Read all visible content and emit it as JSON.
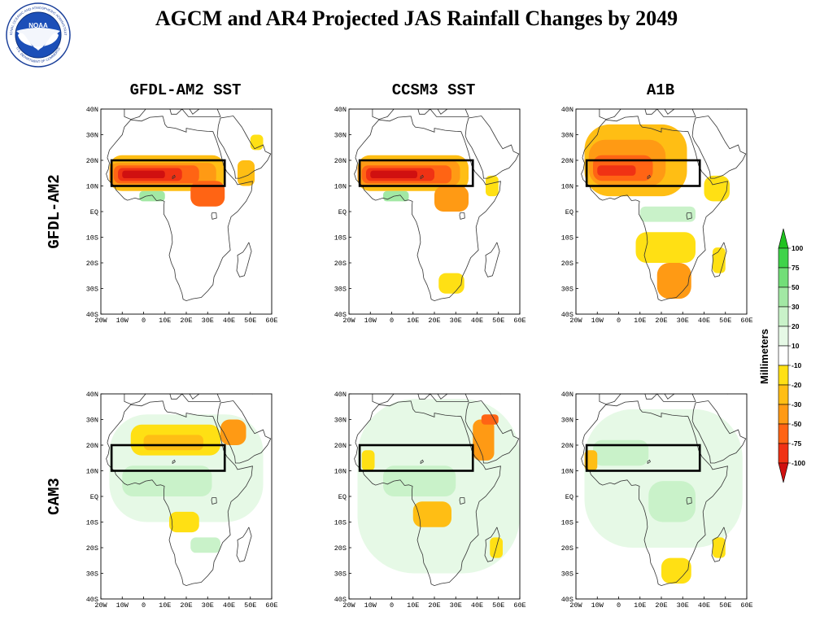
{
  "slide": {
    "title": "AGCM and AR4 Projected JAS Rainfall Changes by 2049",
    "logo": {
      "center_text": "NOAA",
      "ring_top": "NATIONAL OCEANIC AND ATMOSPHERIC ADMINISTRATION",
      "ring_bottom": "U.S. DEPARTMENT OF COMMERCE"
    }
  },
  "grid": {
    "column_titles": [
      "GFDL-AM2 SST",
      "CCSM3 SST",
      "A1B"
    ],
    "row_labels": [
      "GFDL-AM2",
      "CAM3"
    ]
  },
  "axes": {
    "x_ticks": [
      "20W",
      "10W",
      "0",
      "10E",
      "20E",
      "30E",
      "40E",
      "50E",
      "60E"
    ],
    "y_ticks": [
      "40N",
      "30N",
      "20N",
      "10N",
      "EQ",
      "10S",
      "20S",
      "30S",
      "40S"
    ],
    "lon_range": [
      -20,
      60
    ],
    "lat_range": [
      -40,
      40
    ]
  },
  "region_box": {
    "lon": [
      -15,
      38
    ],
    "lat": [
      10,
      20
    ]
  },
  "colorbar": {
    "title": "Millimeters",
    "labels": [
      "100",
      "75",
      "50",
      "30",
      "20",
      "10",
      "-10",
      "-20",
      "-30",
      "-50",
      "-75",
      "-100"
    ],
    "colors": {
      "gt100": "#1fc21f",
      "75_100": "#3fd34a",
      "50_75": "#72de78",
      "30_50": "#a2e8a4",
      "20_30": "#c9f2c9",
      "10_20": "#e6f9e6",
      "neutral": "#ffffff",
      "m10_m20": "#ffe014",
      "m20_m30": "#ffbe14",
      "m30_m50": "#ff9a14",
      "m50_m75": "#ff6414",
      "m75_m100": "#f03214",
      "lt_m100": "#d01010"
    }
  },
  "chart_data": {
    "type": "heatmap",
    "variable": "JAS rainfall change by 2049",
    "panels": [
      {
        "row": "GFDL-AM2",
        "column": "GFDL-AM2 SST",
        "anomalies": [
          {
            "lon": [
              -16,
              38
            ],
            "lat": [
              8,
              22
            ],
            "bin": "m20_m30"
          },
          {
            "lon": [
              -16,
              34
            ],
            "lat": [
              10,
              19
            ],
            "bin": "m30_m50"
          },
          {
            "lon": [
              -14,
              26
            ],
            "lat": [
              11,
              18
            ],
            "bin": "m50_m75"
          },
          {
            "lon": [
              -12,
              18
            ],
            "lat": [
              12,
              17
            ],
            "bin": "m75_m100"
          },
          {
            "lon": [
              -10,
              10
            ],
            "lat": [
              13,
              16
            ],
            "bin": "lt_m100"
          },
          {
            "lon": [
              22,
              38
            ],
            "lat": [
              2,
              12
            ],
            "bin": "m50_m75"
          },
          {
            "lon": [
              44,
              52
            ],
            "lat": [
              10,
              20
            ],
            "bin": "m20_m30"
          },
          {
            "lon": [
              50,
              56
            ],
            "lat": [
              24,
              30
            ],
            "bin": "m10_m20"
          },
          {
            "lon": [
              -2,
              10
            ],
            "lat": [
              4,
              8
            ],
            "bin": "30_50"
          }
        ]
      },
      {
        "row": "GFDL-AM2",
        "column": "CCSM3 SST",
        "anomalies": [
          {
            "lon": [
              -16,
              36
            ],
            "lat": [
              8,
              22
            ],
            "bin": "m20_m30"
          },
          {
            "lon": [
              -16,
              32
            ],
            "lat": [
              10,
              20
            ],
            "bin": "m30_m50"
          },
          {
            "lon": [
              -14,
              28
            ],
            "lat": [
              11,
              18
            ],
            "bin": "m50_m75"
          },
          {
            "lon": [
              -12,
              20
            ],
            "lat": [
              12,
              17
            ],
            "bin": "m75_m100"
          },
          {
            "lon": [
              -10,
              12
            ],
            "lat": [
              13,
              16
            ],
            "bin": "lt_m100"
          },
          {
            "lon": [
              20,
              36
            ],
            "lat": [
              0,
              10
            ],
            "bin": "m30_m50"
          },
          {
            "lon": [
              22,
              34
            ],
            "lat": [
              -32,
              -24
            ],
            "bin": "m10_m20"
          },
          {
            "lon": [
              44,
              50
            ],
            "lat": [
              6,
              14
            ],
            "bin": "m10_m20"
          },
          {
            "lon": [
              -4,
              8
            ],
            "lat": [
              4,
              8
            ],
            "bin": "30_50"
          }
        ]
      },
      {
        "row": "GFDL-AM2",
        "column": "A1B",
        "anomalies": [
          {
            "lon": [
              -16,
              32
            ],
            "lat": [
              6,
              34
            ],
            "bin": "m20_m30"
          },
          {
            "lon": [
              -14,
              22
            ],
            "lat": [
              10,
              28
            ],
            "bin": "m30_m50"
          },
          {
            "lon": [
              -12,
              16
            ],
            "lat": [
              12,
              22
            ],
            "bin": "m50_m75"
          },
          {
            "lon": [
              -10,
              8
            ],
            "lat": [
              14,
              18
            ],
            "bin": "m75_m100"
          },
          {
            "lon": [
              8,
              36
            ],
            "lat": [
              -20,
              -8
            ],
            "bin": "m10_m20"
          },
          {
            "lon": [
              18,
              34
            ],
            "lat": [
              -34,
              -20
            ],
            "bin": "m30_m50"
          },
          {
            "lon": [
              40,
              52
            ],
            "lat": [
              4,
              14
            ],
            "bin": "m10_m20"
          },
          {
            "lon": [
              44,
              50
            ],
            "lat": [
              -24,
              -14
            ],
            "bin": "m10_m20"
          },
          {
            "lon": [
              10,
              36
            ],
            "lat": [
              -4,
              2
            ],
            "bin": "20_30"
          }
        ]
      },
      {
        "row": "CAM3",
        "column": "GFDL-AM2 SST",
        "anomalies": [
          {
            "lon": [
              -16,
              56
            ],
            "lat": [
              -10,
              32
            ],
            "bin": "10_20"
          },
          {
            "lon": [
              -10,
              32
            ],
            "lat": [
              0,
              12
            ],
            "bin": "20_30"
          },
          {
            "lon": [
              -6,
              36
            ],
            "lat": [
              16,
              28
            ],
            "bin": "m10_m20"
          },
          {
            "lon": [
              0,
              28
            ],
            "lat": [
              18,
              24
            ],
            "bin": "m20_m30"
          },
          {
            "lon": [
              36,
              48
            ],
            "lat": [
              20,
              30
            ],
            "bin": "m30_m50"
          },
          {
            "lon": [
              12,
              26
            ],
            "lat": [
              -14,
              -6
            ],
            "bin": "m10_m20"
          },
          {
            "lon": [
              22,
              36
            ],
            "lat": [
              -22,
              -16
            ],
            "bin": "20_30"
          }
        ]
      },
      {
        "row": "CAM3",
        "column": "CCSM3 SST",
        "anomalies": [
          {
            "lon": [
              -16,
              60
            ],
            "lat": [
              -30,
              38
            ],
            "bin": "10_20"
          },
          {
            "lon": [
              -4,
              30
            ],
            "lat": [
              0,
              12
            ],
            "bin": "20_30"
          },
          {
            "lon": [
              -14,
              -8
            ],
            "lat": [
              10,
              18
            ],
            "bin": "m10_m20"
          },
          {
            "lon": [
              10,
              28
            ],
            "lat": [
              -12,
              -2
            ],
            "bin": "m20_m30"
          },
          {
            "lon": [
              38,
              48
            ],
            "lat": [
              14,
              30
            ],
            "bin": "m30_m50"
          },
          {
            "lon": [
              42,
              50
            ],
            "lat": [
              28,
              32
            ],
            "bin": "m50_m75"
          },
          {
            "lon": [
              46,
              52
            ],
            "lat": [
              -24,
              -16
            ],
            "bin": "m10_m20"
          }
        ]
      },
      {
        "row": "CAM3",
        "column": "A1B",
        "anomalies": [
          {
            "lon": [
              -16,
              58
            ],
            "lat": [
              -20,
              34
            ],
            "bin": "10_20"
          },
          {
            "lon": [
              -12,
              14
            ],
            "lat": [
              12,
              22
            ],
            "bin": "20_30"
          },
          {
            "lon": [
              14,
              36
            ],
            "lat": [
              -10,
              6
            ],
            "bin": "20_30"
          },
          {
            "lon": [
              -16,
              -10
            ],
            "lat": [
              10,
              18
            ],
            "bin": "m20_m30"
          },
          {
            "lon": [
              20,
              34
            ],
            "lat": [
              -34,
              -24
            ],
            "bin": "m10_m20"
          },
          {
            "lon": [
              44,
              50
            ],
            "lat": [
              -24,
              -16
            ],
            "bin": "m10_m20"
          }
        ]
      }
    ]
  }
}
